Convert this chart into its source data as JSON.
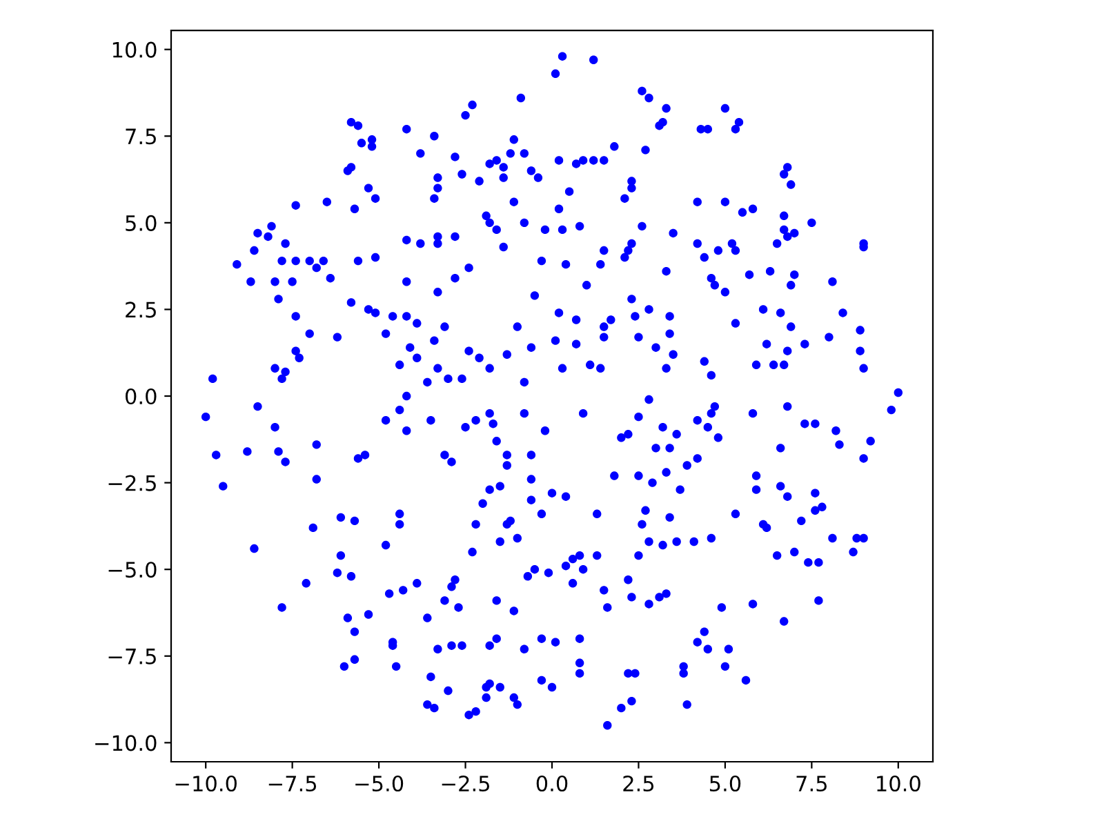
{
  "chart_data": {
    "type": "scatter",
    "color": "#0000ff",
    "marker": "circle",
    "grid": false,
    "legend": false,
    "xlim": [
      -11.0,
      11.0
    ],
    "ylim": [
      -10.55,
      10.55
    ],
    "xticks": [
      {
        "value": -10,
        "label": "−10.0"
      },
      {
        "value": -7.5,
        "label": "−7.5"
      },
      {
        "value": -5,
        "label": "−5.0"
      },
      {
        "value": -2.5,
        "label": "−2.5"
      },
      {
        "value": 0,
        "label": "0.0"
      },
      {
        "value": 2.5,
        "label": "2.5"
      },
      {
        "value": 5,
        "label": "5.0"
      },
      {
        "value": 7.5,
        "label": "7.5"
      },
      {
        "value": 10,
        "label": "10.0"
      }
    ],
    "yticks": [
      {
        "value": -10,
        "label": "−10.0"
      },
      {
        "value": -7.5,
        "label": "−7.5"
      },
      {
        "value": -5,
        "label": "−5.0"
      },
      {
        "value": -2.5,
        "label": "−2.5"
      },
      {
        "value": 0,
        "label": "0.0"
      },
      {
        "value": 2.5,
        "label": "2.5"
      },
      {
        "value": 5,
        "label": "5.0"
      },
      {
        "value": 7.5,
        "label": "7.5"
      },
      {
        "value": 10,
        "label": "10.0"
      }
    ],
    "x": [
      0.3,
      1.2,
      0.1,
      2.6,
      2.8,
      3.3,
      5.0,
      -2.3,
      -2.5,
      -0.9,
      3.1,
      3.2,
      4.3,
      4.5,
      5.3,
      5.4,
      -5.8,
      -5.6,
      -4.2,
      -3.4,
      -5.5,
      -5.2,
      -5.2,
      -1.1,
      -1.2,
      -0.8,
      -2.8,
      -3.8,
      2.7,
      -5.8,
      -5.9,
      -1.8,
      -1.6,
      -1.4,
      -2.6,
      -3.3,
      -3.3,
      -2.1,
      -1.4,
      -0.6,
      -0.4,
      0.2,
      0.7,
      0.9,
      1.2,
      1.5,
      1.8,
      6.8,
      6.7,
      6.9,
      -5.3,
      -5.1,
      -6.5,
      -7.4,
      -5.7,
      -3.4,
      -1.1,
      0.2,
      0.5,
      2.1,
      2.3,
      2.3,
      4.2,
      5.0,
      5.5,
      5.8,
      6.7,
      7.5,
      -1.9,
      -1.8,
      -8.1,
      -8.5,
      -8.2,
      -7.7,
      -8.6,
      -9.1,
      -7.8,
      -7.4,
      -7.0,
      -6.8,
      -6.6,
      -8.7,
      -8.0,
      -7.5,
      -6.4,
      -5.6,
      -5.1,
      -4.2,
      -3.8,
      -3.3,
      -3.3,
      -2.8,
      -1.6,
      -0.8,
      -0.2,
      0.3,
      0.8,
      1.5,
      2.2,
      2.1,
      2.3,
      2.6,
      3.5,
      4.2,
      5.2,
      5.3,
      6.7,
      6.8,
      7.0,
      9.0,
      9.0,
      4.4,
      4.8,
      6.5,
      5.7,
      6.3,
      6.9,
      7.0,
      8.1,
      4.6,
      5.0,
      4.7,
      3.3,
      1.4,
      0.4,
      -0.3,
      -1.4,
      -2.8,
      -2.4,
      -4.2,
      -3.3,
      -5.3,
      -5.1,
      -5.8,
      -7.9,
      -7.4,
      -7.0,
      -4.6,
      -4.2,
      -3.9,
      -3.1,
      -1.0,
      -0.5,
      0.2,
      1.0,
      0.7,
      1.7,
      1.5,
      2.3,
      2.8,
      2.4,
      3.4,
      3.4,
      5.3,
      6.1,
      6.6,
      6.9,
      8.4,
      8.0,
      8.9,
      7.3,
      6.2,
      6.8,
      6.7,
      6.4,
      5.9,
      8.9,
      9.0,
      -7.4,
      -7.3,
      -6.2,
      -4.8,
      -4.1,
      -3.9,
      -3.4,
      -2.4,
      -2.1,
      -1.3,
      -1.8,
      -0.8,
      -0.6,
      0.1,
      0.7,
      1.1,
      1.4,
      1.5,
      0.3,
      2.5,
      3.0,
      3.3,
      4.4,
      4.6,
      3.5,
      -8.0,
      -7.7,
      -7.8,
      -9.8,
      -4.4,
      -3.0,
      -2.6,
      -4.2,
      -3.6,
      -3.3,
      -8.5,
      -10.0,
      9.8,
      10.0,
      -9.7,
      -9.5,
      -8.8,
      -8.0,
      -7.9,
      -7.7,
      -6.8,
      -6.8,
      -5.6,
      -5.4,
      -4.8,
      -4.4,
      -4.2,
      -3.5,
      -3.1,
      -2.9,
      -2.5,
      -2.2,
      -1.7,
      -1.6,
      -1.3,
      -1.8,
      -1.5,
      -0.6,
      -0.6,
      -0.2,
      -0.8,
      -1.8,
      0.9,
      2.2,
      2.0,
      2.8,
      2.5,
      3.2,
      3.0,
      3.6,
      3.4,
      4.2,
      4.5,
      4.6,
      4.7,
      4.8,
      3.9,
      4.2,
      5.8,
      6.8,
      7.3,
      7.6,
      8.2,
      9.0,
      9.2,
      8.3,
      6.6,
      5.9,
      6.6,
      5.9,
      6.8,
      7.6,
      7.6,
      7.8,
      3.7,
      3.3,
      2.9,
      2.5,
      1.8,
      -0.3,
      0.4,
      1.3,
      2.7,
      2.6,
      3.4,
      3.6,
      2.8,
      3.2,
      2.5,
      2.2,
      4.1,
      4.6,
      5.3,
      6.1,
      6.2,
      7.2,
      6.5,
      7.0,
      7.4,
      7.7,
      8.1,
      8.8,
      9.0,
      8.7,
      7.7,
      6.7,
      5.8,
      4.9,
      4.4,
      4.2,
      5.1,
      5.0,
      5.6,
      4.5,
      -8.6,
      -7.8,
      -7.1,
      -6.9,
      -6.1,
      -6.1,
      -6.2,
      -5.7,
      -5.8,
      -5.9,
      -4.8,
      -4.7,
      -4.5,
      -4.6,
      -4.6,
      -4.4,
      -4.4,
      -4.3,
      -3.9,
      -3.6,
      -3.5,
      -3.3,
      -3.1,
      -2.9,
      -2.8,
      -3.0,
      -2.7,
      -2.9,
      -3.4,
      -3.6,
      -2.2,
      -2.4,
      -1.9,
      -1.9,
      -1.8,
      -1.5,
      -1.1,
      -1.0,
      -0.3,
      -1.8,
      -1.6,
      -0.8,
      -0.3,
      0.1,
      -2.6,
      -2.3,
      -2.2,
      -1.3,
      -1.2,
      -1.6,
      -1.1,
      -0.7,
      -0.5,
      -0.1,
      0.4,
      0.6,
      0.6,
      0.9,
      0.8,
      1.3,
      1.5,
      1.6,
      2.3,
      2.8,
      3.1,
      3.3,
      0.8,
      0.8,
      0.8,
      0.0,
      1.6,
      2.0,
      2.2,
      2.4,
      2.3,
      3.8,
      3.8,
      3.9,
      -6.0,
      -5.7,
      -5.7,
      -5.3,
      -1.5,
      -1.0,
      -0.6,
      -2.0,
      -1.3,
      0.0
    ],
    "values": [
      9.8,
      9.7,
      9.3,
      8.8,
      8.6,
      8.3,
      8.3,
      8.4,
      8.1,
      8.6,
      7.8,
      7.9,
      7.7,
      7.7,
      7.7,
      7.9,
      7.9,
      7.8,
      7.7,
      7.5,
      7.3,
      7.4,
      7.2,
      7.4,
      7.0,
      7.0,
      6.9,
      7.0,
      7.1,
      6.6,
      6.5,
      6.7,
      6.8,
      6.6,
      6.4,
      6.3,
      6.0,
      6.2,
      6.3,
      6.5,
      6.3,
      6.8,
      6.7,
      6.8,
      6.8,
      6.8,
      7.2,
      6.6,
      6.4,
      6.1,
      6.0,
      5.7,
      5.6,
      5.5,
      5.4,
      5.7,
      5.6,
      5.4,
      5.9,
      5.7,
      6.0,
      6.2,
      5.6,
      5.6,
      5.3,
      5.4,
      5.2,
      5.0,
      5.2,
      5.0,
      4.9,
      4.7,
      4.6,
      4.4,
      4.2,
      3.8,
      3.9,
      3.9,
      3.9,
      3.7,
      3.9,
      3.3,
      3.3,
      3.3,
      3.4,
      3.9,
      4.0,
      4.5,
      4.4,
      4.4,
      4.6,
      4.6,
      4.8,
      5.0,
      4.8,
      4.8,
      4.9,
      4.2,
      4.2,
      4.0,
      4.4,
      4.9,
      4.7,
      4.4,
      4.4,
      4.2,
      4.8,
      4.6,
      4.7,
      4.4,
      4.3,
      4.0,
      4.2,
      4.4,
      3.5,
      3.6,
      3.2,
      3.5,
      3.3,
      3.4,
      3.0,
      3.2,
      3.6,
      3.8,
      3.8,
      3.9,
      4.3,
      3.4,
      3.7,
      3.3,
      3.0,
      2.5,
      2.4,
      2.7,
      2.8,
      2.3,
      1.8,
      2.3,
      2.3,
      2.1,
      2.0,
      2.0,
      2.9,
      2.4,
      3.2,
      2.2,
      2.2,
      2.0,
      2.8,
      2.5,
      2.3,
      2.3,
      1.8,
      2.1,
      2.5,
      2.4,
      2.0,
      2.4,
      1.7,
      1.9,
      1.5,
      1.5,
      1.3,
      0.9,
      0.9,
      0.9,
      1.3,
      0.8,
      1.3,
      1.1,
      1.7,
      1.8,
      1.4,
      1.1,
      1.6,
      1.3,
      1.1,
      1.2,
      0.8,
      0.4,
      1.4,
      1.6,
      1.5,
      0.9,
      0.8,
      1.7,
      0.8,
      1.7,
      1.4,
      0.8,
      1.0,
      0.6,
      1.2,
      0.8,
      0.7,
      0.5,
      0.5,
      0.9,
      0.5,
      0.5,
      0.0,
      0.4,
      0.8,
      -0.3,
      -0.6,
      -0.4,
      0.1,
      -1.7,
      -2.6,
      -1.6,
      -0.9,
      -1.6,
      -1.9,
      -1.4,
      -2.4,
      -1.8,
      -1.7,
      -0.7,
      -0.4,
      -1.0,
      -0.7,
      -1.7,
      -1.9,
      -0.9,
      -0.7,
      -0.8,
      -1.3,
      -1.7,
      -2.7,
      -2.6,
      -1.7,
      -2.4,
      -1.0,
      -0.5,
      -0.5,
      -0.5,
      -1.1,
      -1.2,
      -0.1,
      -0.6,
      -0.9,
      -1.5,
      -1.1,
      -1.5,
      -0.7,
      -0.9,
      -0.5,
      -0.3,
      -1.2,
      -2.0,
      -1.8,
      -0.5,
      -0.3,
      -0.8,
      -0.8,
      -1.0,
      -1.8,
      -1.3,
      -1.4,
      -1.5,
      -2.3,
      -2.6,
      -2.7,
      -2.9,
      -3.3,
      -2.8,
      -3.2,
      -2.7,
      -2.2,
      -2.5,
      -2.3,
      -2.3,
      -3.4,
      -2.9,
      -3.4,
      -3.3,
      -3.7,
      -3.5,
      -4.2,
      -4.2,
      -4.3,
      -4.6,
      -5.3,
      -4.2,
      -4.1,
      -3.4,
      -3.7,
      -3.8,
      -3.6,
      -4.6,
      -4.5,
      -4.8,
      -4.8,
      -4.1,
      -4.1,
      -4.1,
      -4.5,
      -5.9,
      -6.5,
      -6.0,
      -6.1,
      -6.8,
      -7.1,
      -7.3,
      -7.8,
      -8.2,
      -7.3,
      -4.4,
      -6.1,
      -5.4,
      -3.8,
      -3.5,
      -4.6,
      -5.1,
      -3.6,
      -5.2,
      -6.4,
      -4.3,
      -5.7,
      -7.8,
      -7.1,
      -7.2,
      -3.7,
      -3.4,
      -5.6,
      -5.4,
      -6.4,
      -8.1,
      -7.3,
      -5.9,
      -5.5,
      -5.3,
      -8.5,
      -6.1,
      -7.2,
      -9.0,
      -8.9,
      -9.1,
      -9.2,
      -8.4,
      -8.7,
      -8.3,
      -8.4,
      -8.7,
      -8.9,
      -8.2,
      -7.2,
      -7.0,
      -7.3,
      -7.0,
      -7.1,
      -7.2,
      -4.5,
      -3.7,
      -3.7,
      -3.6,
      -5.9,
      -6.2,
      -5.2,
      -5.0,
      -5.1,
      -4.9,
      -4.7,
      -5.4,
      -5.0,
      -4.6,
      -4.6,
      -5.6,
      -6.1,
      -5.8,
      -6.0,
      -5.8,
      -5.7,
      -7.0,
      -7.7,
      -8.0,
      -8.4,
      -9.5,
      -9.0,
      -8.0,
      -8.0,
      -8.8,
      -7.8,
      -8.0,
      -8.9,
      -7.8,
      -7.6,
      -6.8,
      -6.3,
      -4.2,
      -4.1,
      -3.0,
      -3.1,
      -2.0,
      -2.8
    ]
  }
}
